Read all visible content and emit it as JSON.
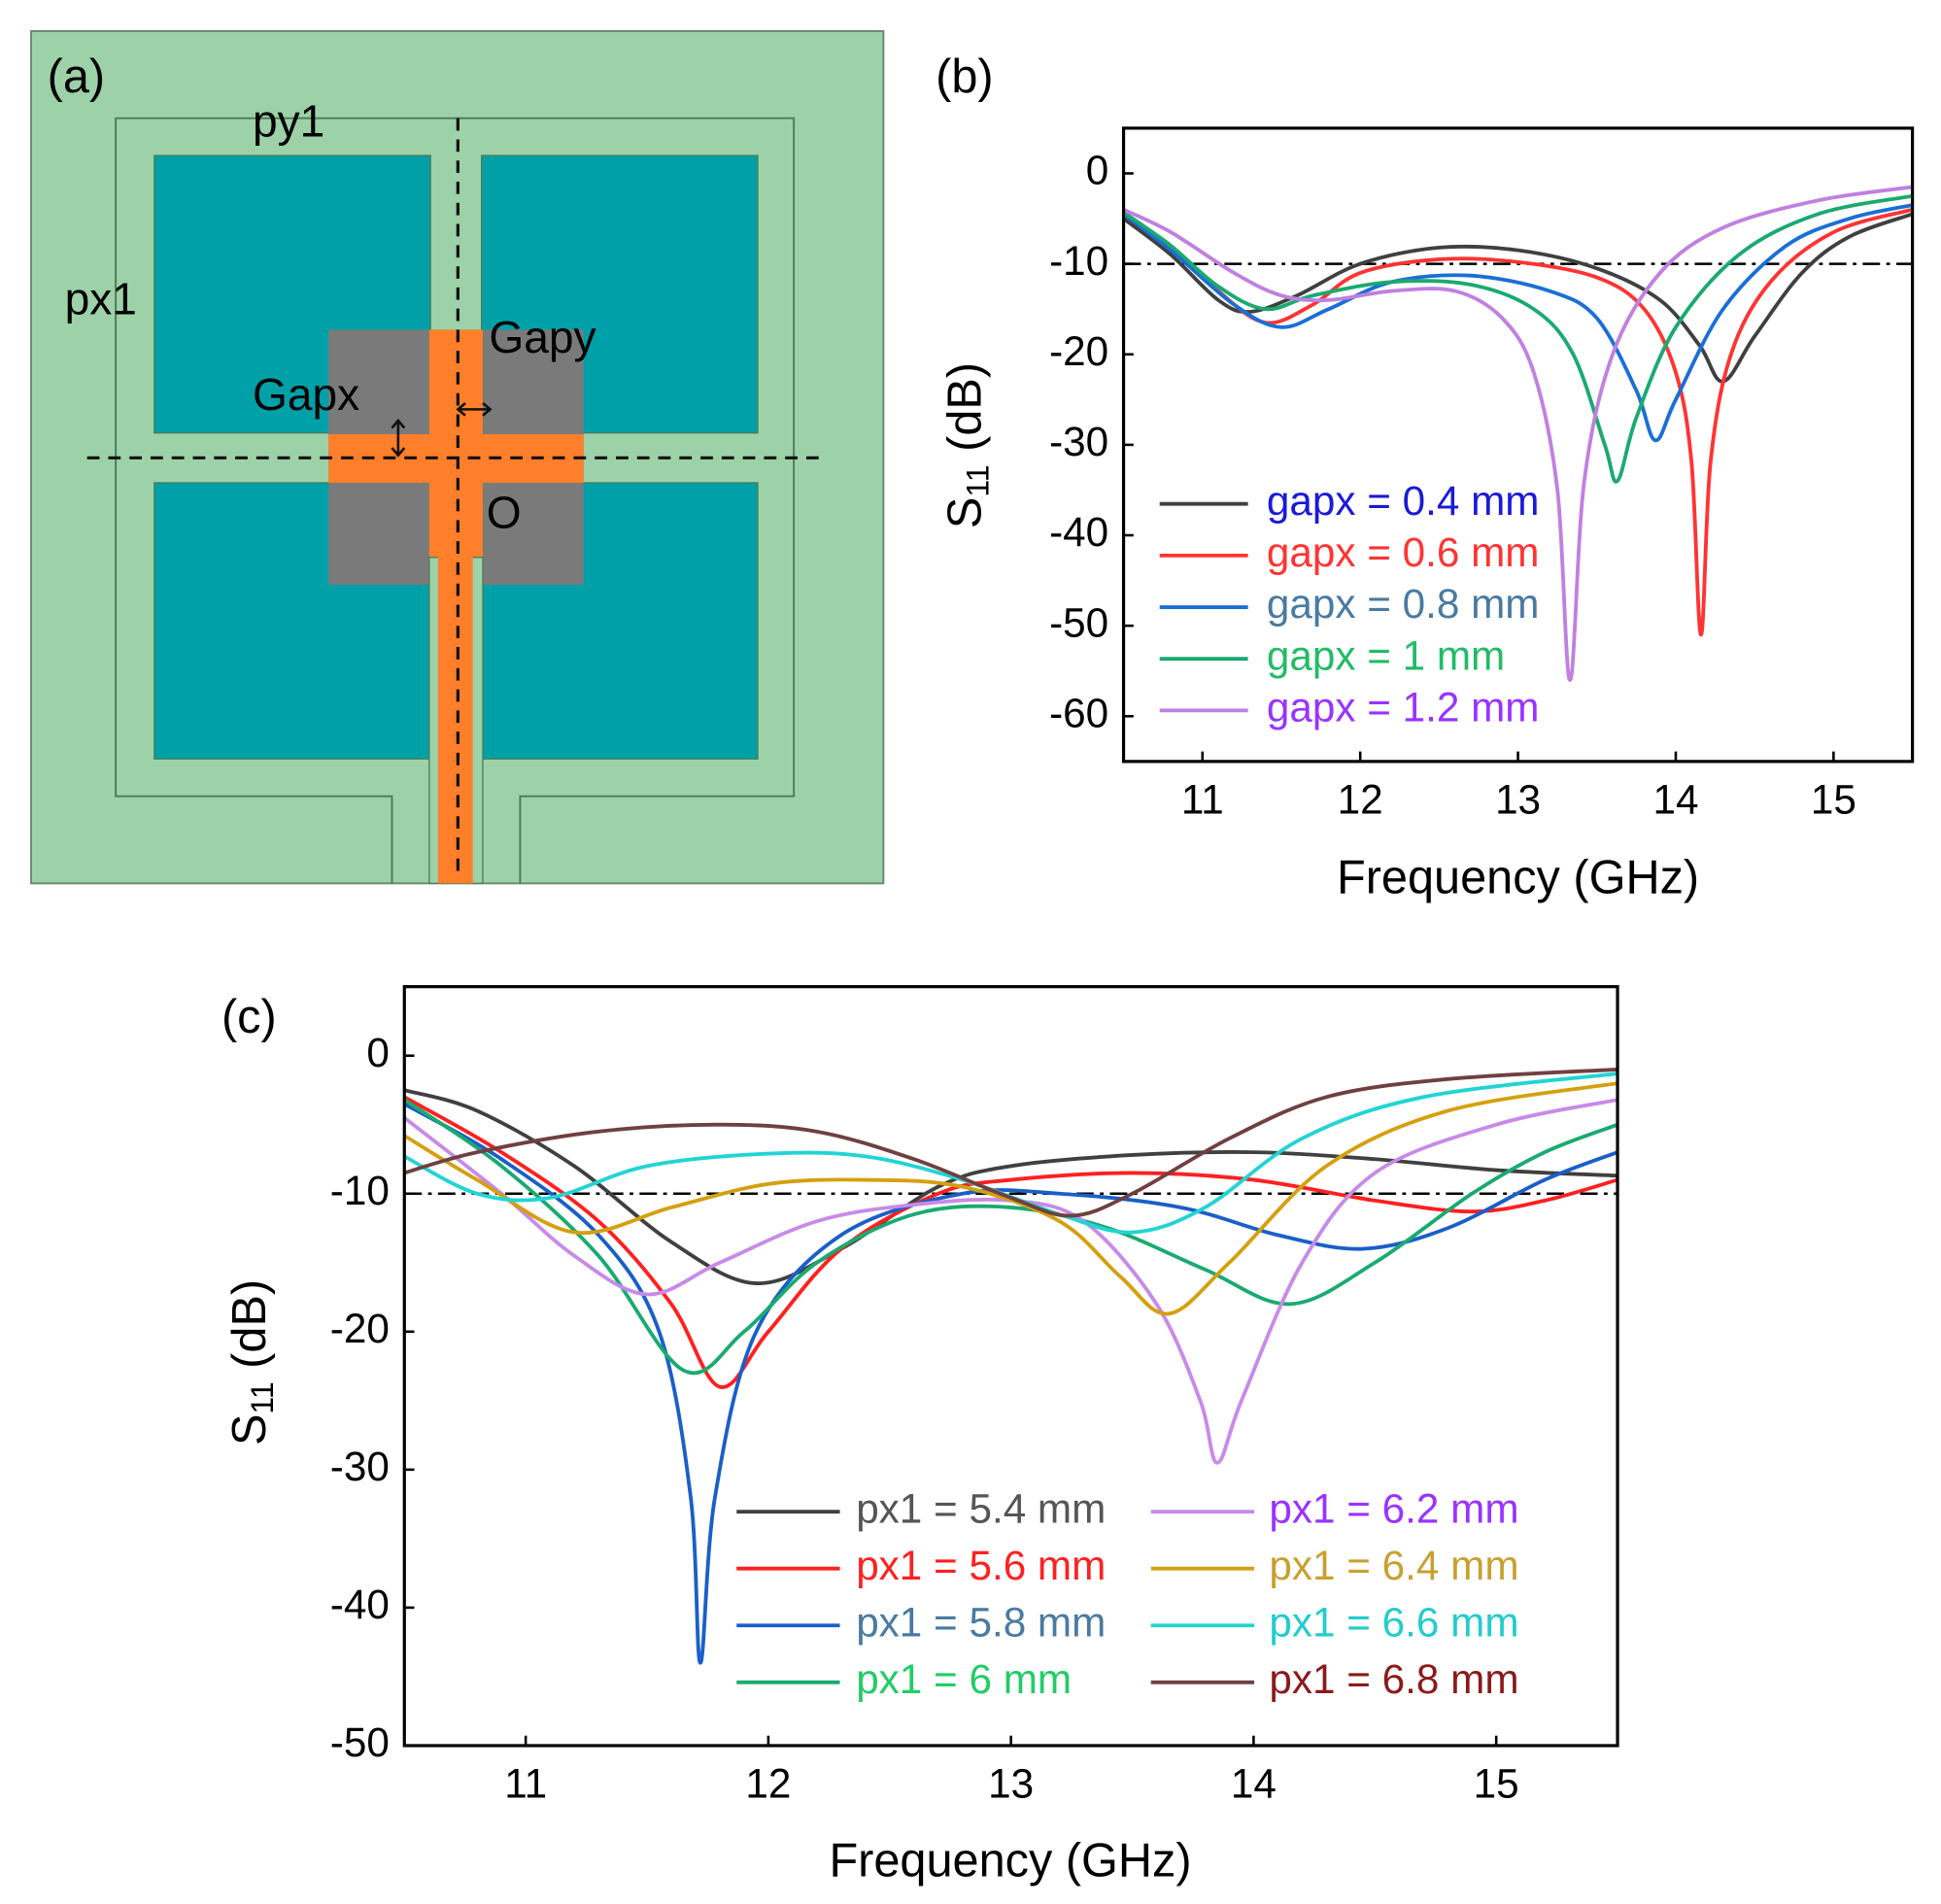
{
  "diagram": {
    "panel_label": "(a)",
    "labels": {
      "py1": "py1",
      "px1": "px1",
      "gapx": "Gapx",
      "gapy": "Gapy",
      "origin": "O"
    }
  },
  "chart_data": [
    {
      "type": "line",
      "panel_label": "(b)",
      "xlabel": "Frequency (GHz)",
      "ylabel": [
        "S",
        "11",
        " (dB)"
      ],
      "xlim": [
        10.5,
        15.5
      ],
      "ylim": [
        -65,
        5
      ],
      "xticks": [
        11,
        12,
        13,
        14,
        15
      ],
      "yticks": [
        0,
        -10,
        -20,
        -30,
        -40,
        -50,
        -60
      ],
      "reference_line": -10,
      "series": [
        {
          "name": "gapx = 0.4 mm",
          "color": "#404040",
          "label_color": "#1a1ad6",
          "x": [
            10.5,
            10.8,
            11.1,
            11.3,
            11.6,
            12,
            12.5,
            13,
            13.5,
            13.9,
            14.15,
            14.3,
            14.5,
            14.8,
            15.1,
            15.5
          ],
          "values": [
            -5,
            -9,
            -14,
            -15.3,
            -13.5,
            -10,
            -8.2,
            -8.5,
            -10.5,
            -14,
            -19,
            -23,
            -18,
            -11,
            -7,
            -4.5
          ]
        },
        {
          "name": "gapx = 0.6 mm",
          "color": "#ff3333",
          "label_color": "#ff3333",
          "x": [
            10.5,
            10.8,
            11.1,
            11.4,
            11.7,
            12,
            12.5,
            13,
            13.5,
            13.8,
            14,
            14.1,
            14.16,
            14.22,
            14.35,
            14.6,
            15,
            15.5
          ],
          "values": [
            -4.5,
            -8,
            -13,
            -16.5,
            -14.5,
            -11,
            -9.5,
            -9.8,
            -11.5,
            -15,
            -22,
            -32,
            -51,
            -32,
            -20,
            -12,
            -6.5,
            -4
          ]
        },
        {
          "name": "gapx = 0.8 mm",
          "color": "#1a6fd6",
          "label_color": "#4a7aa0",
          "x": [
            10.5,
            10.8,
            11.2,
            11.5,
            11.8,
            12.2,
            12.7,
            13.2,
            13.5,
            13.75,
            13.87,
            14,
            14.3,
            14.7,
            15.1,
            15.5
          ],
          "values": [
            -4.5,
            -8.5,
            -14.5,
            -17,
            -15,
            -12,
            -11.3,
            -13,
            -16,
            -24,
            -29.5,
            -25,
            -15,
            -8,
            -5,
            -3.5
          ]
        },
        {
          "name": "gapx = 1 mm",
          "color": "#1aaa70",
          "label_color": "#22bb66",
          "x": [
            10.5,
            10.8,
            11.1,
            11.4,
            11.7,
            12.2,
            12.7,
            13.1,
            13.35,
            13.55,
            13.63,
            13.75,
            14,
            14.4,
            14.9,
            15.5
          ],
          "values": [
            -4.3,
            -8,
            -12.5,
            -15,
            -13.5,
            -12,
            -12.3,
            -15,
            -20,
            -30,
            -34,
            -27,
            -17,
            -9,
            -4.5,
            -2.5
          ]
        },
        {
          "name": "gapx = 1.2 mm",
          "color": "#c080e0",
          "label_color": "#9933ff",
          "x": [
            10.5,
            10.8,
            11.2,
            11.5,
            11.8,
            12.2,
            12.6,
            12.9,
            13.1,
            13.25,
            13.33,
            13.42,
            13.6,
            13.9,
            14.3,
            14.9,
            15.5
          ],
          "values": [
            -4,
            -6.5,
            -11,
            -13.5,
            -14,
            -13,
            -13,
            -16,
            -22,
            -35,
            -56,
            -34,
            -20,
            -11,
            -6,
            -3,
            -1.5
          ]
        }
      ]
    },
    {
      "type": "line",
      "panel_label": "(c)",
      "xlabel": "Frequency (GHz)",
      "ylabel": [
        "S",
        "11",
        " (dB)"
      ],
      "xlim": [
        10.5,
        15.5
      ],
      "ylim": [
        -50,
        5
      ],
      "xticks": [
        11,
        12,
        13,
        14,
        15
      ],
      "yticks": [
        0,
        -10,
        -20,
        -30,
        -40,
        -50
      ],
      "reference_line": -10,
      "series": [
        {
          "name": "px1 = 5.4 mm",
          "color": "#404040",
          "label_color": "#555555",
          "x": [
            10.5,
            10.8,
            11.2,
            11.6,
            11.95,
            12.3,
            12.7,
            13,
            13.5,
            14,
            14.5,
            15,
            15.5
          ],
          "values": [
            -2.5,
            -4,
            -8,
            -13.5,
            -16.5,
            -14,
            -9.5,
            -8,
            -7.2,
            -7,
            -7.5,
            -8.3,
            -8.7
          ]
        },
        {
          "name": "px1 = 5.6 mm",
          "color": "#ff2020",
          "label_color": "#ff2020",
          "x": [
            10.5,
            10.9,
            11.3,
            11.6,
            11.8,
            12,
            12.3,
            12.7,
            13,
            13.5,
            14,
            14.5,
            14.9,
            15.2,
            15.5
          ],
          "values": [
            -3,
            -7,
            -12,
            -18,
            -24,
            -20,
            -14,
            -10,
            -9,
            -8.5,
            -9,
            -10.5,
            -11.3,
            -10.5,
            -9
          ]
        },
        {
          "name": "px1 = 5.8 mm",
          "color": "#1a5fc8",
          "label_color": "#4a7aa0",
          "x": [
            10.5,
            10.9,
            11.3,
            11.55,
            11.68,
            11.72,
            11.78,
            11.95,
            12.3,
            12.8,
            13.2,
            13.7,
            14.1,
            14.45,
            14.8,
            15.2,
            15.5
          ],
          "values": [
            -3.5,
            -7.5,
            -13,
            -20,
            -32,
            -44,
            -32,
            -20,
            -13,
            -10,
            -10,
            -11,
            -13,
            -14,
            -12.5,
            -9,
            -7
          ]
        },
        {
          "name": "px1 = 6 mm",
          "color": "#1aaa70",
          "label_color": "#22cc66",
          "x": [
            10.5,
            10.9,
            11.3,
            11.65,
            11.9,
            12.2,
            12.6,
            13,
            13.4,
            13.8,
            14.15,
            14.5,
            14.9,
            15.2,
            15.5
          ],
          "values": [
            -3.2,
            -8,
            -14.5,
            -22.8,
            -20,
            -15,
            -11.5,
            -11,
            -12.5,
            -15.5,
            -18,
            -15,
            -10,
            -7,
            -5
          ]
        },
        {
          "name": "px1 = 6.2 mm",
          "color": "#c88ae8",
          "label_color": "#9933ff",
          "x": [
            10.5,
            10.9,
            11.2,
            11.5,
            11.8,
            12.2,
            12.6,
            13,
            13.3,
            13.6,
            13.78,
            13.85,
            13.95,
            14.2,
            14.5,
            15,
            15.5
          ],
          "values": [
            -4.5,
            -10,
            -14.5,
            -17.3,
            -15,
            -12,
            -10.8,
            -10.5,
            -12,
            -18,
            -25,
            -29.5,
            -25,
            -15,
            -8.5,
            -5,
            -3.2
          ]
        },
        {
          "name": "px1 = 6.4 mm",
          "color": "#d4a010",
          "label_color": "#c8a030",
          "x": [
            10.5,
            10.8,
            11.2,
            11.6,
            12,
            12.4,
            12.8,
            13.2,
            13.45,
            13.65,
            13.9,
            14.3,
            14.8,
            15.5
          ],
          "values": [
            -5.8,
            -9,
            -12.8,
            -11,
            -9.3,
            -9,
            -9.5,
            -12,
            -16,
            -18.7,
            -15,
            -8,
            -4,
            -2
          ]
        },
        {
          "name": "px1 = 6.6 mm",
          "color": "#22d4d4",
          "label_color": "#22cccc",
          "x": [
            10.5,
            10.8,
            11.1,
            11.5,
            12,
            12.4,
            12.8,
            13.2,
            13.5,
            13.8,
            14.2,
            14.7,
            15.5
          ],
          "values": [
            -7.3,
            -10,
            -10.3,
            -8,
            -7.1,
            -7.3,
            -9,
            -11.5,
            -12.8,
            -11,
            -6,
            -3,
            -1.3
          ]
        },
        {
          "name": "px1 = 6.8 mm",
          "color": "#704040",
          "label_color": "#8b1a1a",
          "x": [
            10.5,
            10.8,
            11.3,
            11.8,
            12.2,
            12.6,
            13,
            13.25,
            13.5,
            13.9,
            14.3,
            14.8,
            15.5
          ],
          "values": [
            -8.5,
            -7,
            -5.5,
            -5,
            -5.5,
            -7.5,
            -10.3,
            -11.6,
            -10,
            -6,
            -3,
            -1.7,
            -1
          ]
        }
      ]
    }
  ]
}
